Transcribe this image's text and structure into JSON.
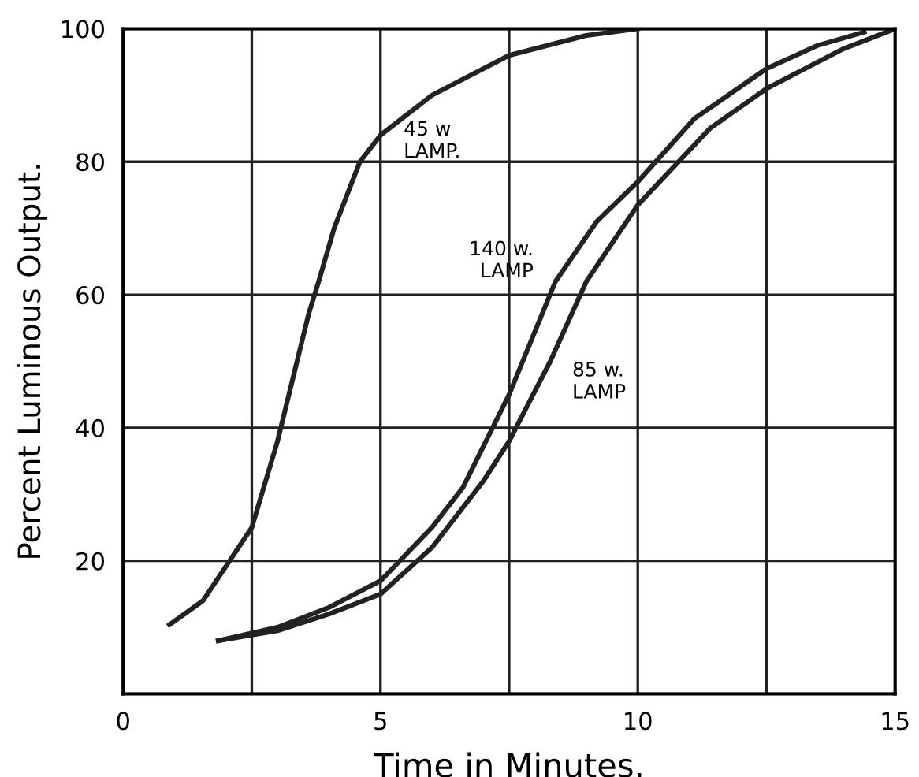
{
  "chart_data": {
    "type": "line",
    "xlabel": "Time in Minutes.",
    "ylabel": "Percent Luminous Output.",
    "series": [
      {
        "color": "#222222",
        "x": [
          0.9,
          1.55,
          2.5,
          3.0,
          3.6,
          3.8,
          4.1,
          4.6,
          5.0,
          6.0,
          7.5,
          9.0,
          10.0
        ],
        "values": [
          10.4,
          14,
          25,
          38,
          57,
          62,
          70,
          80,
          84,
          90,
          96,
          99,
          100
        ]
      },
      {
        "color": "#222222",
        "x": [
          1.85,
          3.0,
          4.0,
          5.0,
          6.0,
          6.6,
          7.5,
          8.4,
          9.2,
          10.0,
          11.1,
          12.5,
          13.5,
          14.4
        ],
        "values": [
          8,
          10,
          13,
          17,
          25,
          31,
          45,
          62,
          71,
          77,
          86.5,
          94,
          97.5,
          99.5
        ]
      },
      {
        "color": "#222222",
        "x": [
          1.85,
          3.0,
          4.0,
          5.0,
          6.0,
          7.0,
          7.5,
          8.3,
          9.0,
          10.0,
          11.4,
          12.5,
          14.0,
          15.0
        ],
        "values": [
          8,
          9.5,
          12,
          15,
          22,
          32,
          38,
          50,
          62,
          73.5,
          85,
          91,
          97,
          100
        ]
      }
    ],
    "annotations": [
      {
        "text": "45 w\nLAMP.",
        "x": 4.6,
        "y": 80
      },
      {
        "text": "140 w.\nLAMP",
        "x": 8.4,
        "y": 62
      },
      {
        "text": "85 w.\nLAMP",
        "x": 8.3,
        "y": 50
      }
    ],
    "xlim": [
      0,
      15
    ],
    "ylim": [
      0,
      100
    ],
    "xticks": [
      0,
      {
        "value": 2.5,
        "label": null
      },
      5,
      {
        "value": 7.5,
        "label": null
      },
      10,
      {
        "value": 12.5,
        "label": null
      },
      15
    ],
    "yticks": [
      {
        "value": 0,
        "label": null
      },
      20,
      40,
      60,
      80,
      100
    ],
    "grid": true,
    "marker": "none",
    "line_style": "solid"
  }
}
